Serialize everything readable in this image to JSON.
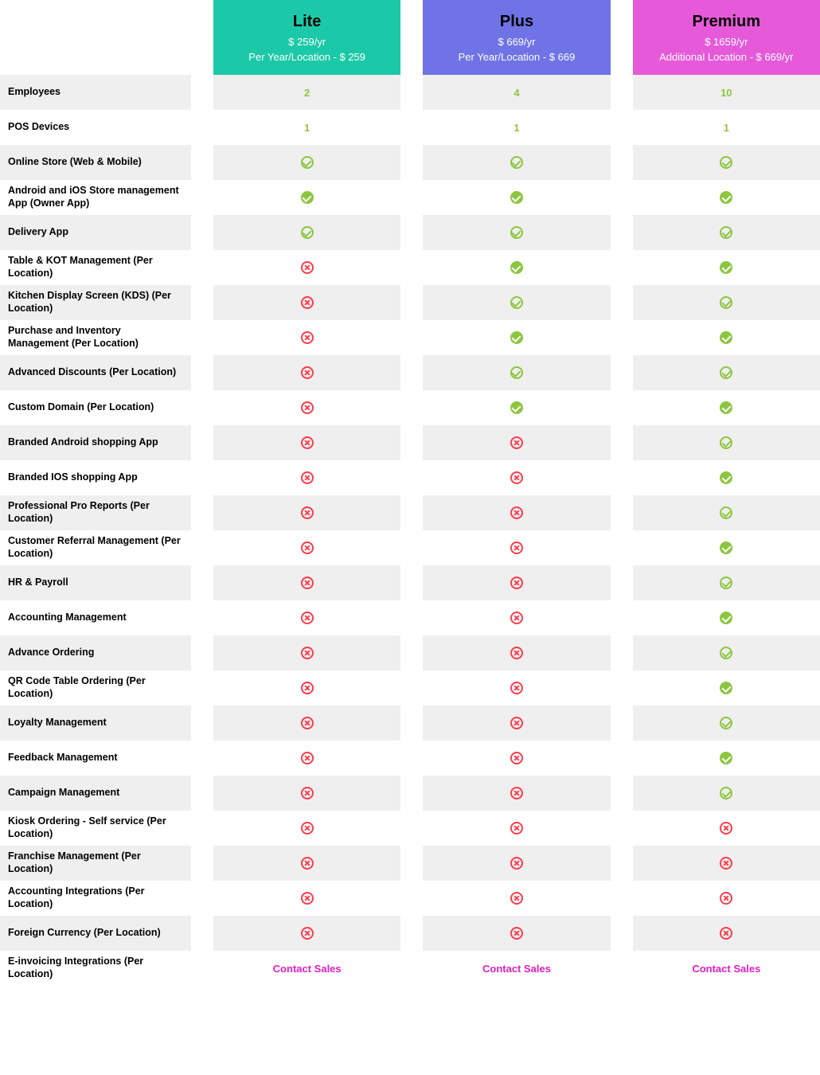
{
  "colors": {
    "yes": "#8cc63f",
    "no": "#ff3b4b",
    "text_green": "#8cc63f",
    "link": "#e020c0",
    "shaded_bg": "#efefef",
    "plain_bg": "#ffffff"
  },
  "plans": [
    {
      "name": "Lite",
      "price": "$ 259/yr",
      "sub": "Per Year/Location - $ 259",
      "bg": "#1bc9a8"
    },
    {
      "name": "Plus",
      "price": "$ 669/yr",
      "sub": "Per Year/Location - $ 669",
      "bg": "#6f73e6"
    },
    {
      "name": "Premium",
      "price": "$ 1659/yr",
      "sub": "Additional Location - $ 669/yr",
      "bg": "#e65ad9"
    }
  ],
  "rows": [
    {
      "label": "Employees",
      "values": [
        "2",
        "4",
        "10"
      ],
      "type": "text"
    },
    {
      "label": "POS Devices",
      "values": [
        "1",
        "1",
        "1"
      ],
      "type": "text"
    },
    {
      "label": "Online Store (Web & Mobile)",
      "values": [
        "yes",
        "yes",
        "yes"
      ],
      "type": "icon"
    },
    {
      "label": "Android and iOS Store management App (Owner App)",
      "values": [
        "yes-solid",
        "yes-solid",
        "yes-solid"
      ],
      "type": "icon"
    },
    {
      "label": "Delivery App",
      "values": [
        "yes",
        "yes",
        "yes"
      ],
      "type": "icon"
    },
    {
      "label": "Table & KOT Management (Per Location)",
      "values": [
        "no",
        "yes-solid",
        "yes-solid"
      ],
      "type": "icon"
    },
    {
      "label": "Kitchen Display Screen (KDS) (Per Location)",
      "values": [
        "no",
        "yes",
        "yes"
      ],
      "type": "icon"
    },
    {
      "label": "Purchase and Inventory Management (Per Location)",
      "values": [
        "no",
        "yes-solid",
        "yes-solid"
      ],
      "type": "icon"
    },
    {
      "label": "Advanced Discounts (Per Location)",
      "values": [
        "no",
        "yes",
        "yes"
      ],
      "type": "icon"
    },
    {
      "label": "Custom Domain (Per Location)",
      "values": [
        "no",
        "yes-solid",
        "yes-solid"
      ],
      "type": "icon"
    },
    {
      "label": "Branded Android shopping App",
      "values": [
        "no",
        "no",
        "yes"
      ],
      "type": "icon"
    },
    {
      "label": "Branded IOS shopping App",
      "values": [
        "no",
        "no",
        "yes-solid"
      ],
      "type": "icon"
    },
    {
      "label": "Professional Pro Reports (Per Location)",
      "values": [
        "no",
        "no",
        "yes"
      ],
      "type": "icon"
    },
    {
      "label": "Customer Referral Management (Per Location)",
      "values": [
        "no",
        "no",
        "yes-solid"
      ],
      "type": "icon"
    },
    {
      "label": "HR & Payroll",
      "values": [
        "no",
        "no",
        "yes"
      ],
      "type": "icon"
    },
    {
      "label": "Accounting Management",
      "values": [
        "no",
        "no",
        "yes-solid"
      ],
      "type": "icon"
    },
    {
      "label": "Advance Ordering",
      "values": [
        "no",
        "no",
        "yes"
      ],
      "type": "icon"
    },
    {
      "label": "QR Code Table Ordering (Per Location)",
      "values": [
        "no",
        "no",
        "yes-solid"
      ],
      "type": "icon"
    },
    {
      "label": "Loyalty Management",
      "values": [
        "no",
        "no",
        "yes"
      ],
      "type": "icon"
    },
    {
      "label": "Feedback Management",
      "values": [
        "no",
        "no",
        "yes-solid"
      ],
      "type": "icon"
    },
    {
      "label": "Campaign Management",
      "values": [
        "no",
        "no",
        "yes"
      ],
      "type": "icon"
    },
    {
      "label": "Kiosk Ordering - Self service (Per Location)",
      "values": [
        "no",
        "no",
        "no"
      ],
      "type": "icon"
    },
    {
      "label": "Franchise Management (Per Location)",
      "values": [
        "no",
        "no",
        "no"
      ],
      "type": "icon"
    },
    {
      "label": "Accounting Integrations (Per Location)",
      "values": [
        "no",
        "no",
        "no"
      ],
      "type": "icon"
    },
    {
      "label": "Foreign Currency (Per Location)",
      "values": [
        "no",
        "no",
        "no"
      ],
      "type": "icon"
    },
    {
      "label": "E-invoicing Integrations (Per Location)",
      "values": [
        "Contact Sales",
        "Contact Sales",
        "Contact Sales"
      ],
      "type": "link"
    }
  ]
}
